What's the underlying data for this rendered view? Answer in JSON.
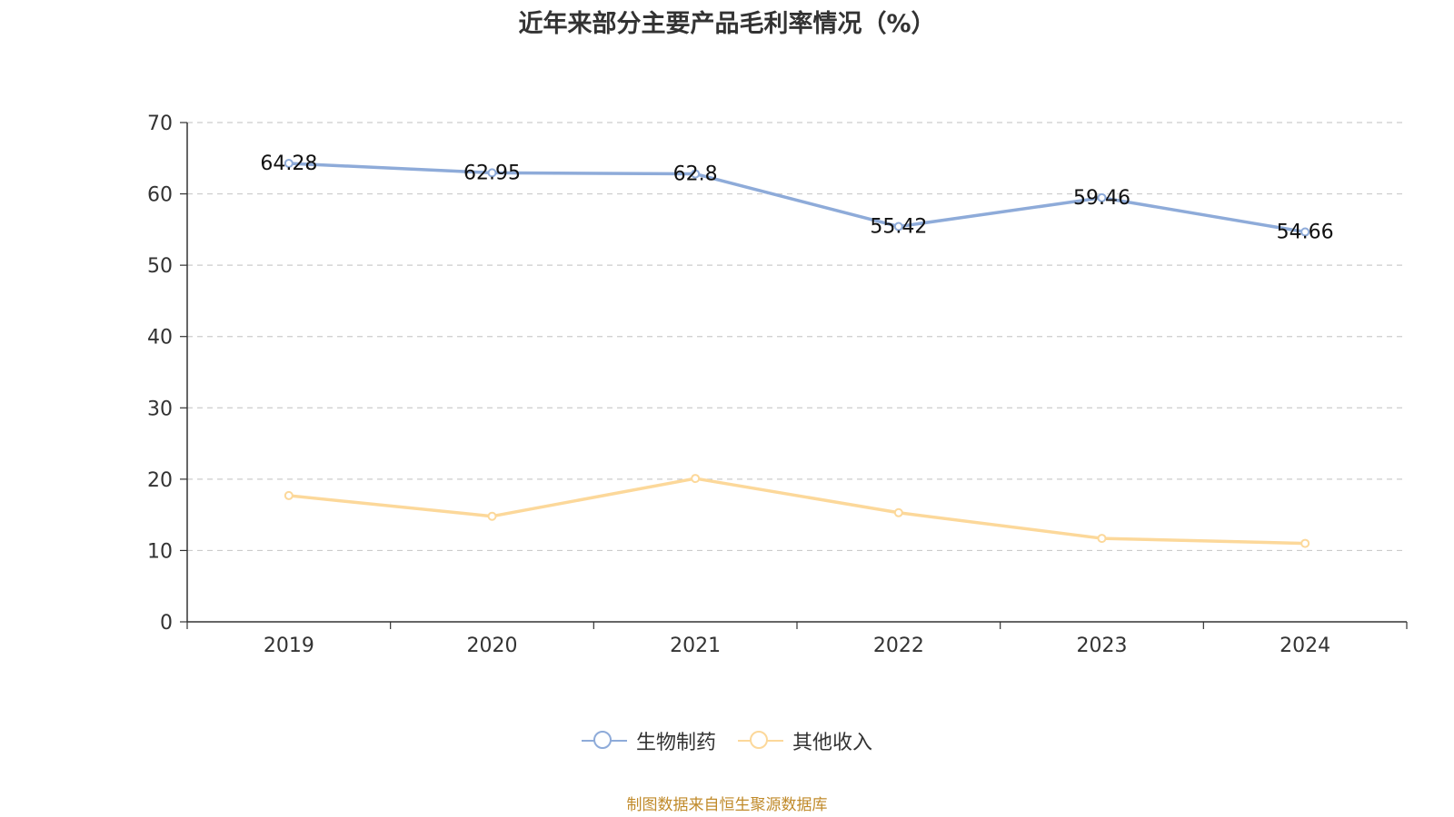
{
  "title": "近年来部分主要产品毛利率情况（%）",
  "source": "制图数据来自恒生聚源数据库",
  "chart_data": {
    "type": "line",
    "x": [
      "2019",
      "2020",
      "2021",
      "2022",
      "2023",
      "2024"
    ],
    "ylim": [
      0,
      70
    ],
    "yticks": [
      0,
      10,
      20,
      30,
      40,
      50,
      60,
      70
    ],
    "grid": true,
    "legend_position": "bottom-center",
    "series": [
      {
        "name": "生物制药",
        "color": "#8eabd9",
        "values": [
          64.28,
          62.95,
          62.8,
          55.42,
          59.46,
          54.66
        ],
        "show_labels": true
      },
      {
        "name": "其他收入",
        "color": "#fcd89a",
        "values": [
          17.7,
          14.8,
          20.1,
          15.3,
          11.7,
          11.0
        ],
        "show_labels": false
      }
    ]
  }
}
